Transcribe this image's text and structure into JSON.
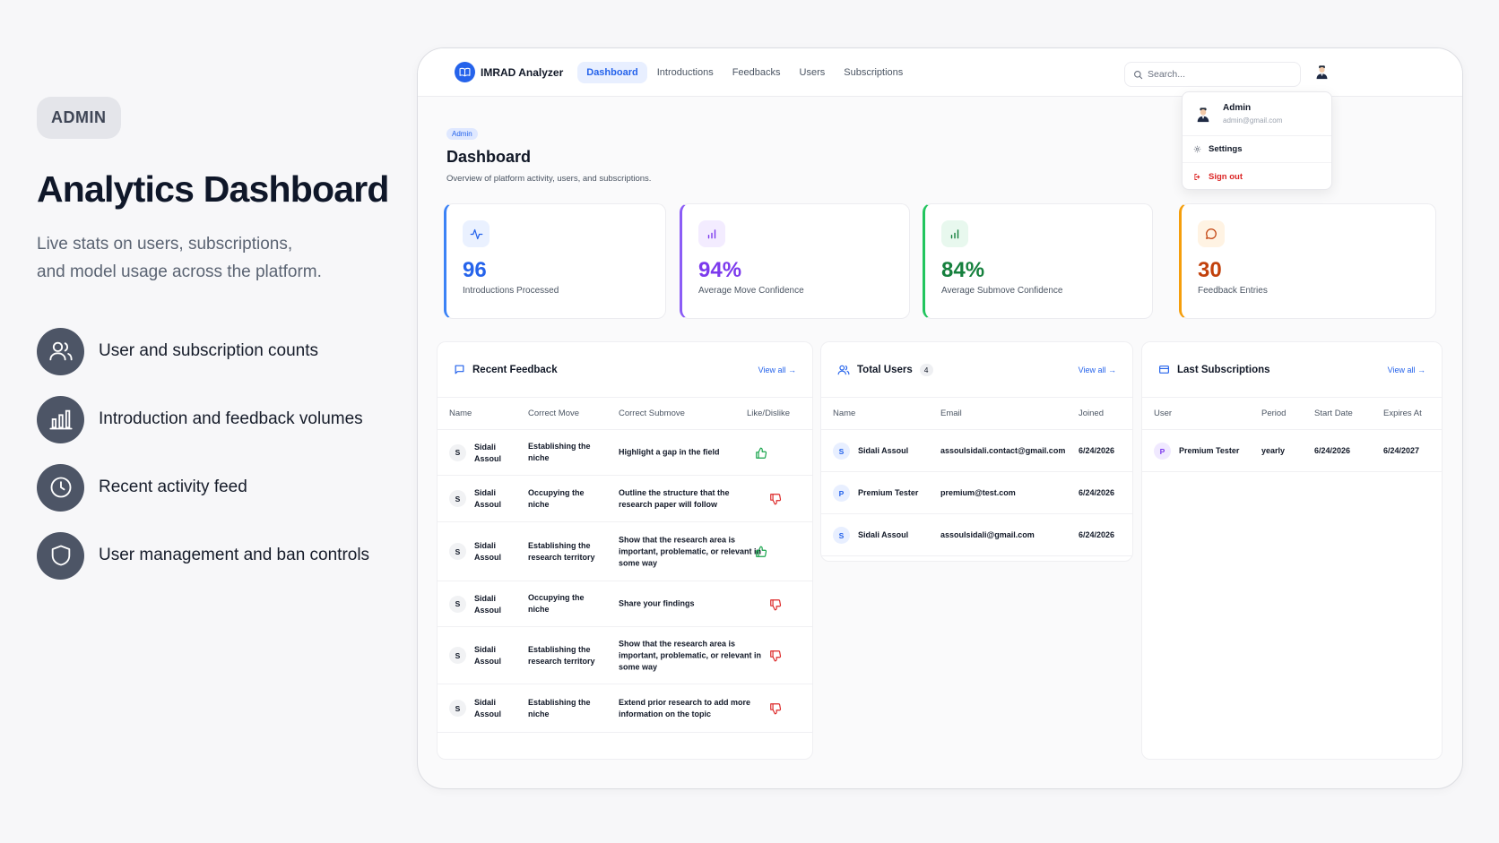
{
  "promo": {
    "badge": "ADMIN",
    "title": "Analytics Dashboard",
    "subtitle_lines": [
      "Live stats on users, subscriptions,",
      "and model usage across the platform."
    ],
    "features": [
      {
        "label": "User and subscription counts",
        "icon": "users-icon"
      },
      {
        "label": "Introduction and feedback volumes",
        "icon": "bar-chart-icon"
      },
      {
        "label": "Recent activity feed",
        "icon": "clock-icon"
      },
      {
        "label": "User management and ban controls",
        "icon": "shield-icon"
      }
    ]
  },
  "app": {
    "brand": "IMRAD Analyzer",
    "tabs": [
      "Dashboard",
      "Introductions",
      "Feedbacks",
      "Users",
      "Subscriptions"
    ],
    "active_tab": "Dashboard",
    "search": {
      "placeholder": "Search..."
    },
    "user_menu": {
      "name": "Admin",
      "email": "admin@gmail.com",
      "settings": "Settings",
      "signout": "Sign out"
    },
    "page": {
      "badge": "Admin",
      "title": "Dashboard",
      "subtitle": "Overview of platform activity, users, and subscriptions."
    },
    "stats": [
      {
        "value": "96",
        "label": "Introductions Processed",
        "color": "#2563eb",
        "icon": "activity-icon"
      },
      {
        "value": "94%",
        "label": "Average Move Confidence",
        "color": "#7c3aed",
        "icon": "bar-chart-icon"
      },
      {
        "value": "84%",
        "label": "Average Submove Confidence",
        "color": "#15803d",
        "icon": "bar-chart-icon"
      },
      {
        "value": "30",
        "label": "Feedback Entries",
        "color": "#c2410c",
        "icon": "message-icon"
      }
    ],
    "recent_feedback": {
      "title": "Recent Feedback",
      "view_all": "View all →",
      "columns": [
        "Name",
        "Correct Move",
        "Correct Submove",
        "Like/Dislike"
      ],
      "rows": [
        {
          "initial": "S",
          "name": "Sidali Assoul",
          "move": "Establishing the niche",
          "submove": "Highlight a gap in the field",
          "liked": true
        },
        {
          "initial": "S",
          "name": "Sidali Assoul",
          "move": "Occupying the niche",
          "submove": "Outline the structure that the research paper will follow",
          "liked": false
        },
        {
          "initial": "S",
          "name": "Sidali Assoul",
          "move": "Establishing the research territory",
          "submove": "Show that the research area is important, problematic, or relevant in some way",
          "liked": true
        },
        {
          "initial": "S",
          "name": "Sidali Assoul",
          "move": "Occupying the niche",
          "submove": "Share your findings",
          "liked": false
        },
        {
          "initial": "S",
          "name": "Sidali Assoul",
          "move": "Establishing the research territory",
          "submove": "Show that the research area is important, problematic, or relevant in some way",
          "liked": false
        },
        {
          "initial": "S",
          "name": "Sidali Assoul",
          "move": "Establishing the niche",
          "submove": "Extend prior research to add more information on the topic",
          "liked": false
        }
      ]
    },
    "total_users": {
      "title": "Total Users",
      "count": "4",
      "view_all": "View all →",
      "columns": [
        "Name",
        "Email",
        "Joined"
      ],
      "rows": [
        {
          "initial": "S",
          "name": "Sidali Assoul",
          "email": "assoulsidali.contact@gmail.com",
          "joined": "6/24/2026"
        },
        {
          "initial": "P",
          "name": "Premium Tester",
          "email": "premium@test.com",
          "joined": "6/24/2026"
        },
        {
          "initial": "S",
          "name": "Sidali Assoul",
          "email": "assoulsidali@gmail.com",
          "joined": "6/24/2026"
        }
      ]
    },
    "last_subscriptions": {
      "title": "Last Subscriptions",
      "view_all": "View all →",
      "columns": [
        "User",
        "Period",
        "Start Date",
        "Expires At"
      ],
      "rows": [
        {
          "initial": "P",
          "name": "Premium Tester",
          "period": "yearly",
          "start": "6/24/2026",
          "expires": "6/24/2027"
        }
      ]
    }
  }
}
